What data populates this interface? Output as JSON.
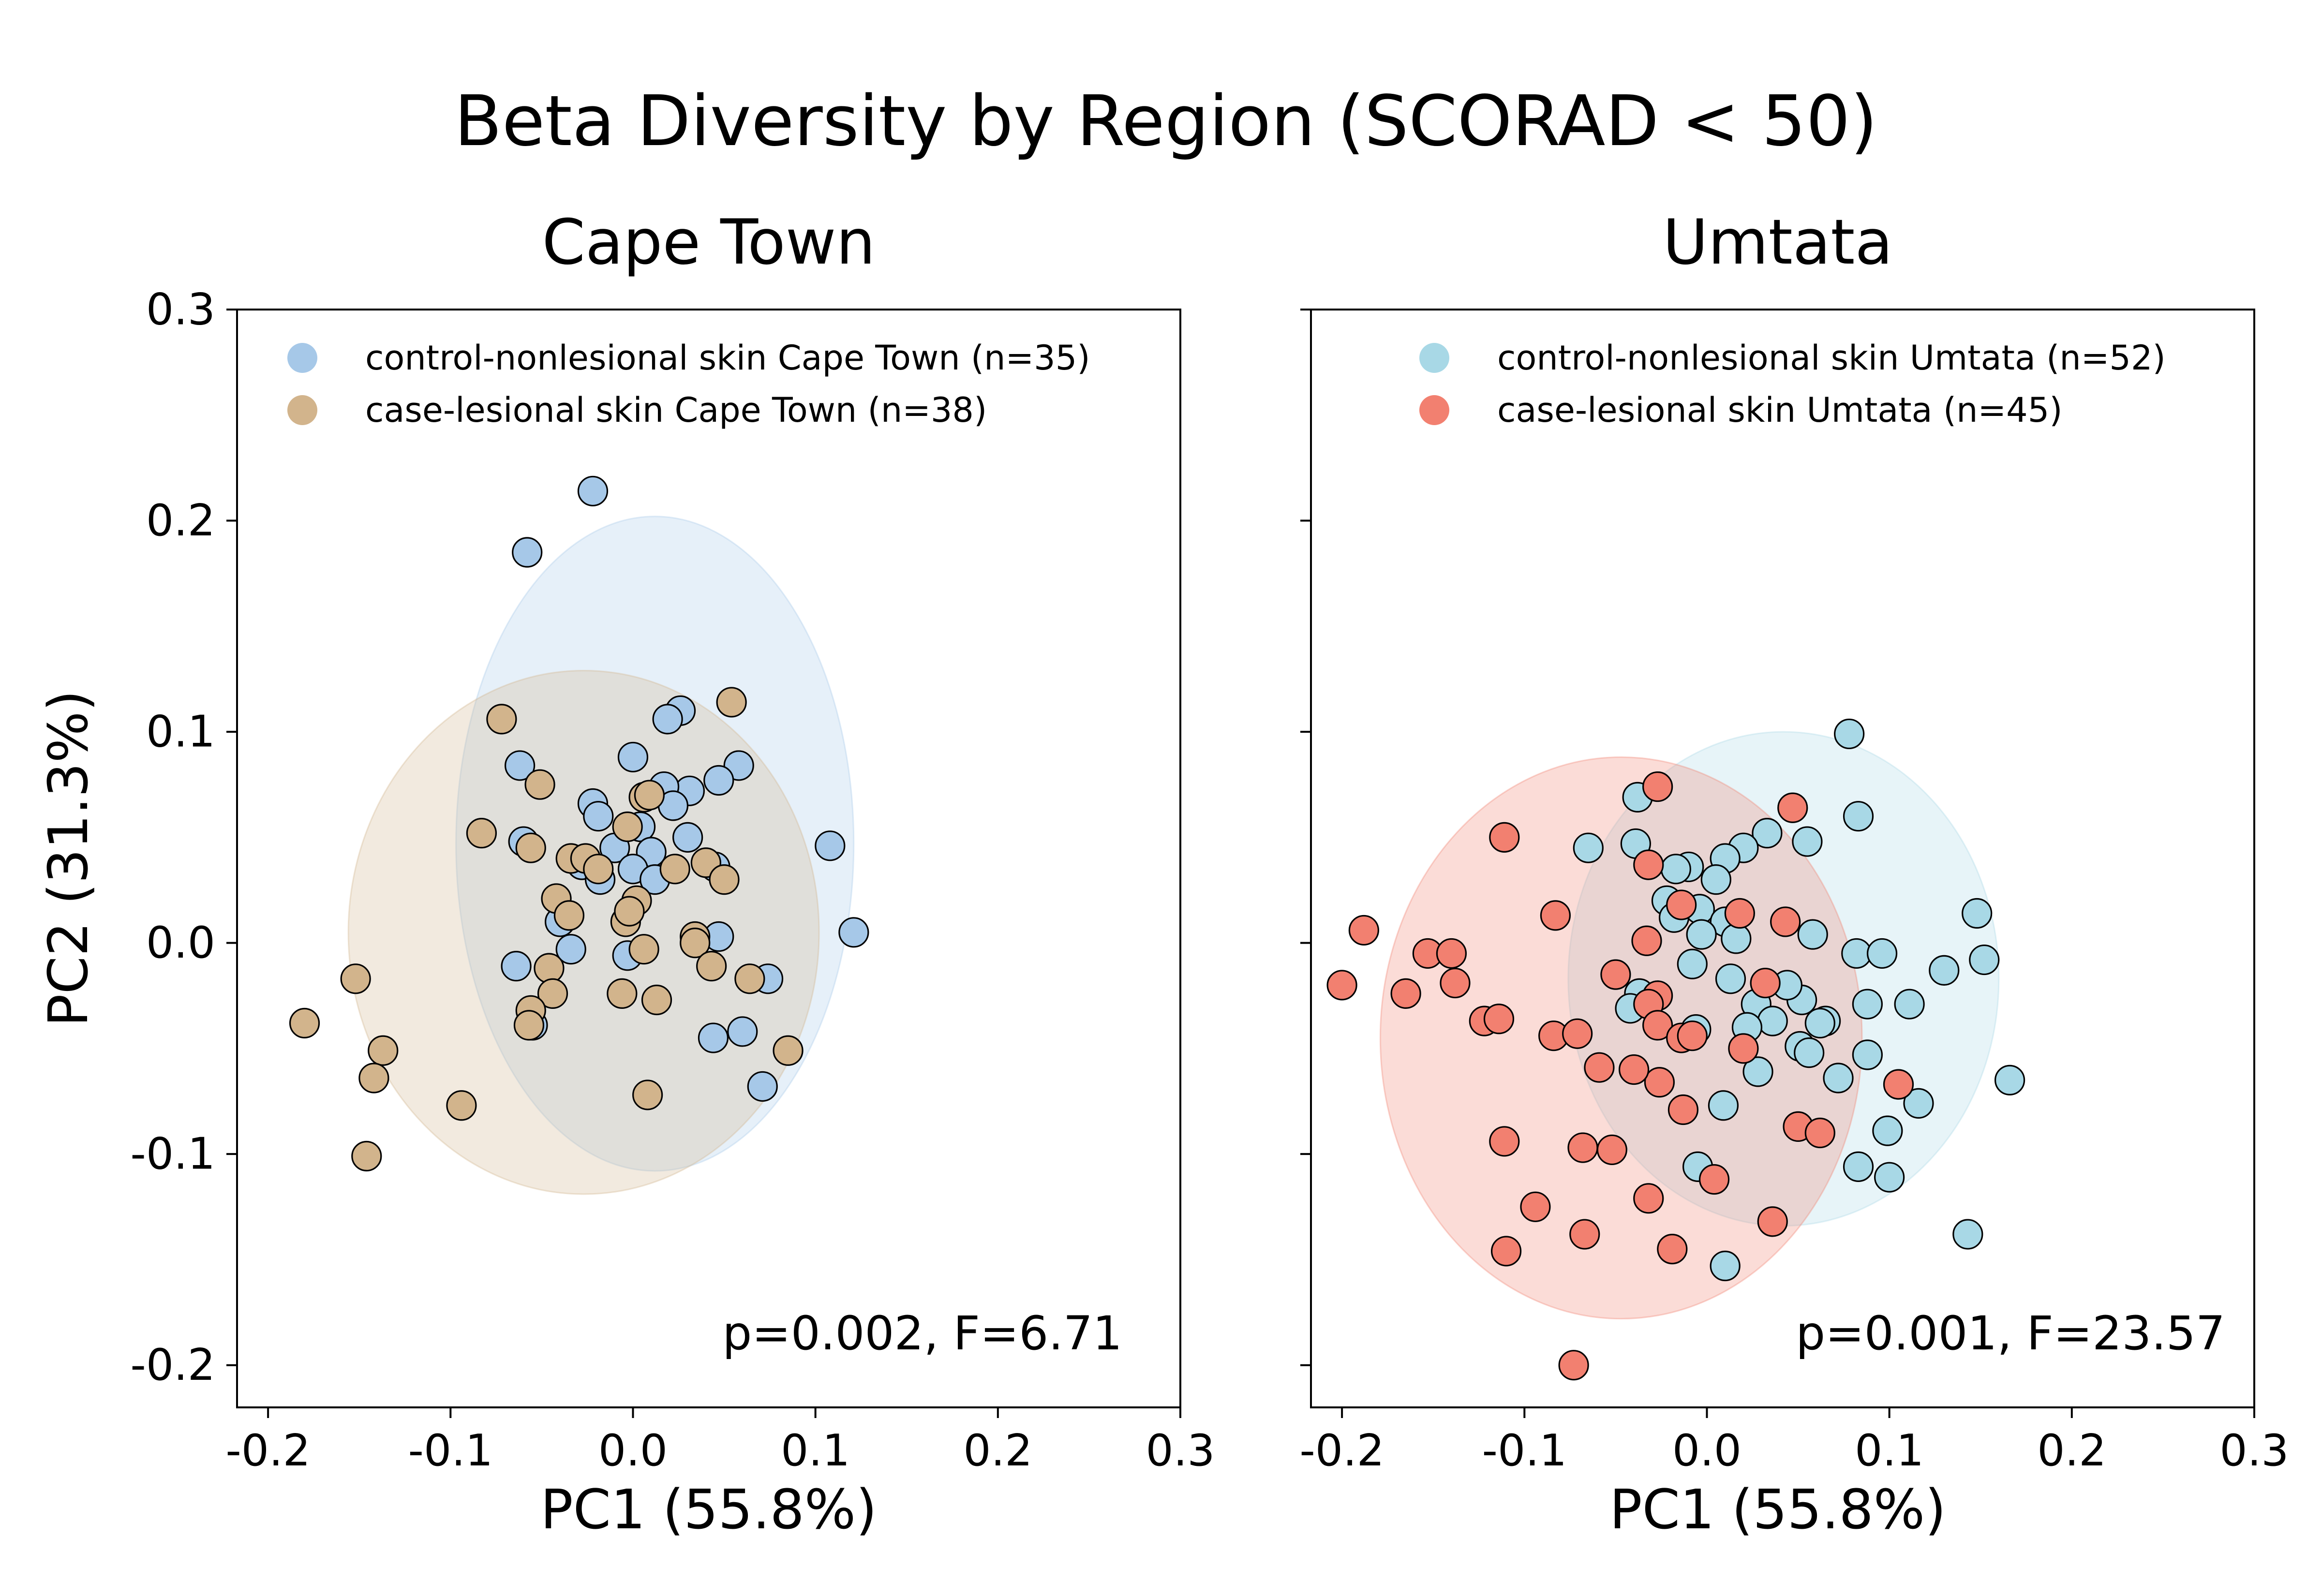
{
  "figure": {
    "title": "Beta Diversity by Region (SCORAD < 50)",
    "ylabel": "PC2 (31.3%)"
  },
  "chart_data": [
    {
      "type": "scatter",
      "title": "Cape Town",
      "xlabel": "PC1 (55.8%)",
      "ylabel": "PC2 (31.3%)",
      "xlim": [
        -0.217,
        0.3
      ],
      "ylim": [
        -0.22,
        0.3
      ],
      "xticks": [
        -0.2,
        -0.1,
        0.0,
        0.1,
        0.2,
        0.3
      ],
      "xtick_labels": [
        "-0.2",
        "-0.1",
        "0.0",
        "0.1",
        "0.2",
        "0.3"
      ],
      "yticks": [
        -0.2,
        -0.1,
        0.0,
        0.1,
        0.2,
        0.3
      ],
      "ytick_labels": [
        "-0.2",
        "-0.1",
        "0.0",
        "0.1",
        "0.2",
        "0.3"
      ],
      "show_yticklabels": true,
      "grid": false,
      "legend_position": "top-left",
      "annotation": "p=0.002, F=6.71",
      "series": [
        {
          "name": "control-nonlesional skin Cape Town (n=35)",
          "color": "#a6c8e8",
          "ellipse": {
            "cx": 0.012,
            "cy": 0.047,
            "rx": 0.109,
            "ry": 0.155
          },
          "points": [
            [
              -0.022,
              0.214
            ],
            [
              -0.058,
              0.185
            ],
            [
              0.026,
              0.11
            ],
            [
              0.019,
              0.106
            ],
            [
              0.0,
              0.088
            ],
            [
              0.058,
              0.084
            ],
            [
              0.047,
              0.077
            ],
            [
              0.031,
              0.072
            ],
            [
              0.017,
              0.074
            ],
            [
              0.022,
              0.065
            ],
            [
              -0.062,
              0.084
            ],
            [
              -0.022,
              0.066
            ],
            [
              -0.019,
              0.06
            ],
            [
              0.004,
              0.055
            ],
            [
              0.108,
              0.046
            ],
            [
              -0.06,
              0.048
            ],
            [
              -0.01,
              0.045
            ],
            [
              0.01,
              0.043
            ],
            [
              -0.028,
              0.037
            ],
            [
              0.0,
              0.035
            ],
            [
              -0.018,
              0.03
            ],
            [
              0.045,
              0.036
            ],
            [
              0.121,
              0.005
            ],
            [
              0.047,
              0.003
            ],
            [
              -0.034,
              -0.003
            ],
            [
              -0.003,
              -0.006
            ],
            [
              -0.064,
              -0.011
            ],
            [
              0.074,
              -0.017
            ],
            [
              0.06,
              -0.042
            ],
            [
              0.044,
              -0.045
            ],
            [
              0.071,
              -0.068
            ],
            [
              -0.055,
              -0.039
            ],
            [
              -0.04,
              0.01
            ],
            [
              0.012,
              0.03
            ],
            [
              0.03,
              0.05
            ]
          ]
        },
        {
          "name": "case-lesional skin Cape Town (n=38)",
          "color": "#d2b48c",
          "ellipse": {
            "cx": -0.027,
            "cy": 0.005,
            "rx": 0.129,
            "ry": 0.124
          },
          "points": [
            [
              -0.072,
              0.106
            ],
            [
              0.054,
              0.114
            ],
            [
              -0.051,
              0.075
            ],
            [
              -0.083,
              0.052
            ],
            [
              0.006,
              0.069
            ],
            [
              0.009,
              0.07
            ],
            [
              -0.056,
              0.045
            ],
            [
              -0.003,
              0.055
            ],
            [
              -0.034,
              0.04
            ],
            [
              -0.026,
              0.04
            ],
            [
              -0.019,
              0.035
            ],
            [
              0.04,
              0.038
            ],
            [
              0.023,
              0.035
            ],
            [
              -0.042,
              0.021
            ],
            [
              0.002,
              0.02
            ],
            [
              -0.035,
              0.013
            ],
            [
              -0.004,
              0.01
            ],
            [
              -0.002,
              0.015
            ],
            [
              0.034,
              0.003
            ],
            [
              0.034,
              0.0
            ],
            [
              0.006,
              -0.003
            ],
            [
              0.043,
              -0.011
            ],
            [
              -0.046,
              -0.012
            ],
            [
              0.064,
              -0.017
            ],
            [
              -0.044,
              -0.024
            ],
            [
              -0.006,
              -0.024
            ],
            [
              0.013,
              -0.027
            ],
            [
              -0.056,
              -0.032
            ],
            [
              -0.057,
              -0.039
            ],
            [
              0.085,
              -0.051
            ],
            [
              -0.18,
              -0.038
            ],
            [
              -0.152,
              -0.017
            ],
            [
              -0.137,
              -0.051
            ],
            [
              -0.142,
              -0.064
            ],
            [
              -0.094,
              -0.077
            ],
            [
              -0.146,
              -0.101
            ],
            [
              0.008,
              -0.072
            ],
            [
              0.05,
              0.03
            ]
          ]
        }
      ]
    },
    {
      "type": "scatter",
      "title": "Umtata",
      "xlabel": "PC1 (55.8%)",
      "ylabel": "",
      "xlim": [
        -0.217,
        0.3
      ],
      "ylim": [
        -0.22,
        0.3
      ],
      "xticks": [
        -0.2,
        -0.1,
        0.0,
        0.1,
        0.2,
        0.3
      ],
      "xtick_labels": [
        "-0.2",
        "-0.1",
        "0.0",
        "0.1",
        "0.2",
        "0.3"
      ],
      "yticks": [
        -0.2,
        -0.1,
        0.0,
        0.1,
        0.2,
        0.3
      ],
      "ytick_labels": [
        "",
        "",
        "",
        "",
        "",
        ""
      ],
      "show_yticklabels": false,
      "grid": false,
      "legend_position": "top-right",
      "annotation": "p=0.001, F=23.57",
      "series": [
        {
          "name": "control-nonlesional skin Umtata (n=52)",
          "color": "#a8d8e6",
          "ellipse": {
            "cx": 0.042,
            "cy": -0.017,
            "rx": 0.118,
            "ry": 0.117
          },
          "points": [
            [
              0.078,
              0.099
            ],
            [
              0.083,
              0.06
            ],
            [
              -0.038,
              0.069
            ],
            [
              -0.065,
              0.045
            ],
            [
              0.033,
              0.052
            ],
            [
              0.02,
              0.045
            ],
            [
              0.055,
              0.048
            ],
            [
              -0.039,
              0.047
            ],
            [
              0.01,
              0.04
            ],
            [
              -0.01,
              0.036
            ],
            [
              -0.017,
              0.035
            ],
            [
              0.005,
              0.03
            ],
            [
              -0.022,
              0.02
            ],
            [
              -0.004,
              0.016
            ],
            [
              0.01,
              0.01
            ],
            [
              -0.018,
              0.012
            ],
            [
              0.148,
              0.014
            ],
            [
              0.058,
              0.004
            ],
            [
              -0.003,
              0.004
            ],
            [
              0.016,
              0.002
            ],
            [
              0.082,
              -0.005
            ],
            [
              0.096,
              -0.005
            ],
            [
              0.152,
              -0.008
            ],
            [
              -0.008,
              -0.01
            ],
            [
              0.13,
              -0.013
            ],
            [
              0.013,
              -0.017
            ],
            [
              0.052,
              -0.027
            ],
            [
              -0.037,
              -0.024
            ],
            [
              0.027,
              -0.029
            ],
            [
              0.088,
              -0.029
            ],
            [
              0.111,
              -0.029
            ],
            [
              -0.042,
              -0.031
            ],
            [
              0.065,
              -0.037
            ],
            [
              0.036,
              -0.037
            ],
            [
              0.022,
              -0.04
            ],
            [
              -0.006,
              -0.041
            ],
            [
              0.051,
              -0.049
            ],
            [
              0.056,
              -0.052
            ],
            [
              0.088,
              -0.053
            ],
            [
              0.028,
              -0.061
            ],
            [
              0.072,
              -0.064
            ],
            [
              0.166,
              -0.065
            ],
            [
              0.009,
              -0.077
            ],
            [
              0.116,
              -0.076
            ],
            [
              0.099,
              -0.089
            ],
            [
              -0.005,
              -0.106
            ],
            [
              0.083,
              -0.106
            ],
            [
              0.1,
              -0.111
            ],
            [
              0.143,
              -0.138
            ],
            [
              0.01,
              -0.153
            ],
            [
              0.062,
              -0.038
            ],
            [
              0.044,
              -0.02
            ]
          ]
        },
        {
          "name": "case-lesional skin Umtata (n=45)",
          "color": "#f28070",
          "ellipse": {
            "cx": -0.047,
            "cy": -0.045,
            "rx": 0.132,
            "ry": 0.133
          },
          "points": [
            [
              -0.027,
              0.074
            ],
            [
              0.047,
              0.064
            ],
            [
              -0.111,
              0.05
            ],
            [
              -0.032,
              0.037
            ],
            [
              -0.014,
              0.018
            ],
            [
              0.018,
              0.014
            ],
            [
              -0.083,
              0.013
            ],
            [
              0.043,
              0.01
            ],
            [
              -0.033,
              0.001
            ],
            [
              -0.188,
              0.006
            ],
            [
              -0.153,
              -0.005
            ],
            [
              -0.14,
              -0.005
            ],
            [
              -0.165,
              -0.024
            ],
            [
              -0.138,
              -0.019
            ],
            [
              -0.2,
              -0.02
            ],
            [
              -0.05,
              -0.015
            ],
            [
              -0.027,
              -0.025
            ],
            [
              0.032,
              -0.019
            ],
            [
              -0.032,
              -0.029
            ],
            [
              -0.122,
              -0.037
            ],
            [
              -0.114,
              -0.036
            ],
            [
              -0.027,
              -0.039
            ],
            [
              -0.084,
              -0.044
            ],
            [
              -0.071,
              -0.043
            ],
            [
              -0.014,
              -0.045
            ],
            [
              -0.008,
              -0.044
            ],
            [
              -0.059,
              -0.059
            ],
            [
              -0.026,
              -0.066
            ],
            [
              0.105,
              -0.067
            ],
            [
              -0.013,
              -0.079
            ],
            [
              0.05,
              -0.087
            ],
            [
              0.062,
              -0.09
            ],
            [
              -0.111,
              -0.094
            ],
            [
              -0.068,
              -0.097
            ],
            [
              -0.052,
              -0.098
            ],
            [
              0.004,
              -0.112
            ],
            [
              -0.032,
              -0.121
            ],
            [
              -0.094,
              -0.125
            ],
            [
              -0.067,
              -0.138
            ],
            [
              -0.019,
              -0.145
            ],
            [
              -0.11,
              -0.146
            ],
            [
              0.036,
              -0.132
            ],
            [
              -0.073,
              -0.2
            ],
            [
              -0.04,
              -0.06
            ],
            [
              0.02,
              -0.05
            ]
          ]
        }
      ]
    }
  ]
}
